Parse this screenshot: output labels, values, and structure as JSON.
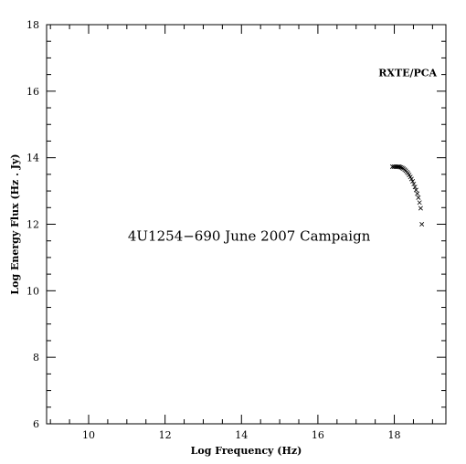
{
  "chart_data": {
    "type": "scatter",
    "xlabel": "Log Frequency (Hz)",
    "ylabel": "Log Energy Flux (Hz . Jy)",
    "xlim": [
      8.9,
      19.35
    ],
    "ylim": [
      6,
      18
    ],
    "x_ticks": [
      10,
      12,
      14,
      16,
      18
    ],
    "y_ticks": [
      6,
      8,
      10,
      12,
      14,
      16,
      18
    ],
    "annotations": [
      {
        "id": "campaign",
        "text": "4U1254−690 June 2007 Campaign",
        "x": 14.2,
        "y": 11.5
      },
      {
        "id": "instrument",
        "text": "RXTE/PCA",
        "x": 18.35,
        "y": 16.45
      }
    ],
    "series": [
      {
        "marker": "x",
        "x": [
          17.95,
          17.99,
          18.03,
          18.06,
          18.09,
          18.12,
          18.15,
          18.18,
          18.21,
          18.24,
          18.27,
          18.3,
          18.33,
          18.36,
          18.39,
          18.42,
          18.45,
          18.48,
          18.51,
          18.54,
          18.57,
          18.6,
          18.63,
          18.66,
          18.69,
          18.72
        ],
        "y": [
          13.73,
          13.73,
          13.73,
          13.73,
          13.73,
          13.73,
          13.72,
          13.71,
          13.69,
          13.67,
          13.64,
          13.61,
          13.57,
          13.53,
          13.48,
          13.42,
          13.36,
          13.29,
          13.21,
          13.12,
          13.03,
          12.92,
          12.8,
          12.65,
          12.48,
          12.0
        ]
      }
    ]
  }
}
